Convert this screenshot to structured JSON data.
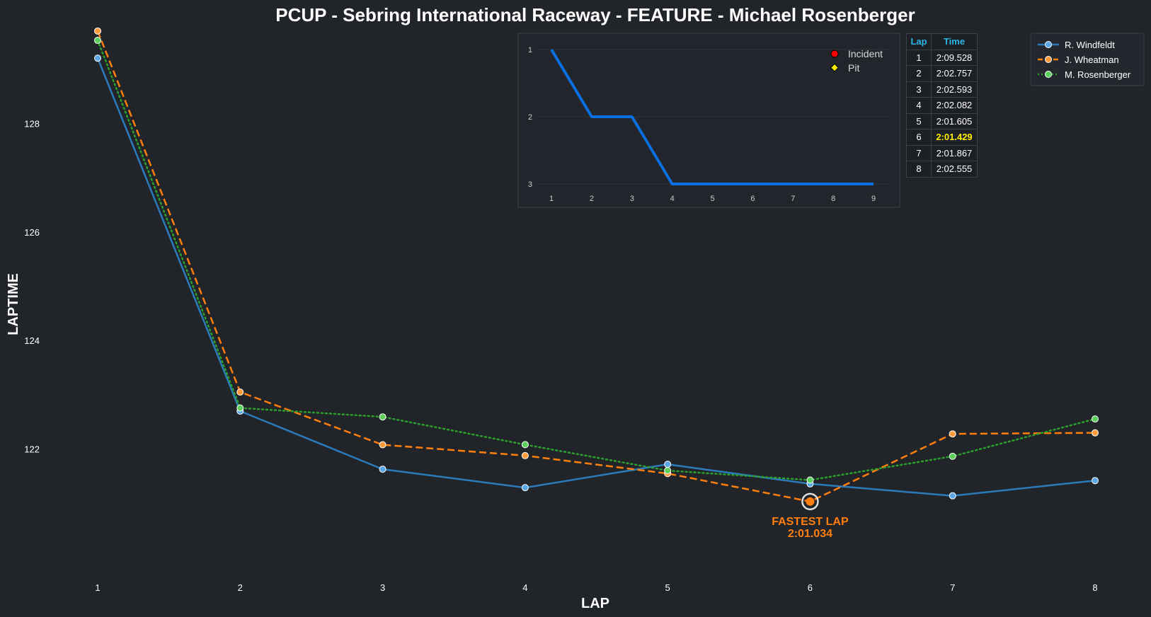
{
  "chart_data": [
    {
      "type": "line",
      "title": "PCUP - Sebring International Raceway - FEATURE - Michael Rosenberger",
      "xlabel": "LAP",
      "ylabel": "LAPTIME",
      "x": [
        1,
        2,
        3,
        4,
        5,
        6,
        7,
        8
      ],
      "xticks": [
        "1",
        "2",
        "3",
        "4",
        "5",
        "6",
        "7",
        "8"
      ],
      "yticks": [
        "122",
        "124",
        "126",
        "128"
      ],
      "ylim": [
        119.95,
        129.75
      ],
      "grid": false,
      "legend_position": "top-right",
      "series": [
        {
          "name": "R. Windfeldt",
          "color": "#2b7bba",
          "marker_color": "#5aa6e6",
          "style": "solid",
          "values": [
            129.2,
            122.7,
            121.63,
            121.29,
            121.72,
            121.36,
            121.14,
            121.42
          ]
        },
        {
          "name": "J. Wheatman",
          "color": "#ff7f0e",
          "marker_color": "#ff9a3d",
          "style": "dashed",
          "values": [
            129.7,
            123.05,
            122.08,
            121.88,
            121.55,
            121.034,
            122.28,
            122.3
          ]
        },
        {
          "name": "M. Rosenberger",
          "color": "#2ca02c",
          "marker_color": "#5ccf5c",
          "style": "dotted",
          "values": [
            129.528,
            122.757,
            122.593,
            122.082,
            121.605,
            121.429,
            121.867,
            122.555
          ]
        }
      ],
      "annotation": {
        "series": "J. Wheatman",
        "x": 6,
        "y": 121.034,
        "label": "FASTEST LAP",
        "value": "2:01.034",
        "color": "#ff7f0e"
      }
    },
    {
      "type": "line",
      "title": "",
      "x": [
        1,
        2,
        3,
        4,
        5,
        6,
        7,
        8,
        9
      ],
      "values": [
        1,
        2,
        2,
        3,
        3,
        3,
        3,
        3,
        3
      ],
      "xticks": [
        "1",
        "2",
        "3",
        "4",
        "5",
        "6",
        "7",
        "8",
        "9"
      ],
      "yticks": [
        "1",
        "2",
        "3"
      ],
      "ylim": [
        3,
        1
      ],
      "inverted_y": true,
      "color": "#0b6fe0",
      "legend_position": "top-right",
      "legend": [
        {
          "label": "Incident",
          "marker": "circle",
          "color": "#ff0000"
        },
        {
          "label": "Pit",
          "marker": "diamond",
          "color": "#ffee00"
        }
      ]
    },
    {
      "type": "table",
      "headers": [
        "Lap",
        "Time"
      ],
      "rows": [
        [
          "1",
          "2:09.528"
        ],
        [
          "2",
          "2:02.757"
        ],
        [
          "3",
          "2:02.593"
        ],
        [
          "4",
          "2:02.082"
        ],
        [
          "5",
          "2:01.605"
        ],
        [
          "6",
          "2:01.429"
        ],
        [
          "7",
          "2:01.867"
        ],
        [
          "8",
          "2:02.555"
        ]
      ],
      "highlight_row": 5,
      "highlight_color": "#ffee00"
    }
  ]
}
